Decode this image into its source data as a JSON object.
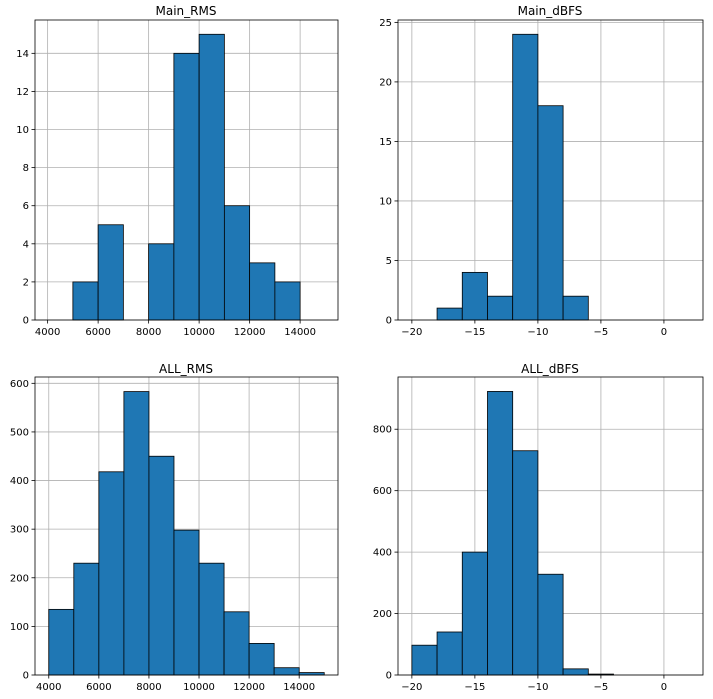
{
  "colors": {
    "bar": "#1f77b4",
    "edge": "#000000",
    "grid": "#b0b0b0"
  },
  "chart_data": [
    {
      "type": "bar",
      "title": "Main_RMS",
      "xlim": [
        3500,
        15500
      ],
      "ylim": [
        0,
        15.75
      ],
      "xticks": [
        4000,
        6000,
        8000,
        10000,
        12000,
        14000
      ],
      "xtick_labels": [
        "4000",
        "6000",
        "8000",
        "10000",
        "12000",
        "14000"
      ],
      "yticks": [
        0,
        2,
        4,
        6,
        8,
        10,
        12,
        14
      ],
      "ytick_labels": [
        "0",
        "2",
        "4",
        "6",
        "8",
        "10",
        "12",
        "14"
      ],
      "bins": [
        {
          "x0": 4000,
          "x1": 5000,
          "count": 0
        },
        {
          "x0": 5000,
          "x1": 6000,
          "count": 2
        },
        {
          "x0": 6000,
          "x1": 7000,
          "count": 5
        },
        {
          "x0": 7000,
          "x1": 8000,
          "count": 0
        },
        {
          "x0": 8000,
          "x1": 9000,
          "count": 4
        },
        {
          "x0": 9000,
          "x1": 10000,
          "count": 14
        },
        {
          "x0": 10000,
          "x1": 11000,
          "count": 15
        },
        {
          "x0": 11000,
          "x1": 12000,
          "count": 6
        },
        {
          "x0": 12000,
          "x1": 13000,
          "count": 3
        },
        {
          "x0": 13000,
          "x1": 14000,
          "count": 2
        },
        {
          "x0": 14000,
          "x1": 15000,
          "count": 0
        }
      ],
      "grid": true
    },
    {
      "type": "bar",
      "title": "Main_dBFS",
      "xlim": [
        -21.1,
        3.1
      ],
      "ylim": [
        0,
        25.2
      ],
      "xticks": [
        -20,
        -15,
        -10,
        -5,
        0
      ],
      "xtick_labels": [
        "−20",
        "−15",
        "−10",
        "−5",
        "0"
      ],
      "yticks": [
        0,
        5,
        10,
        15,
        20,
        25
      ],
      "ytick_labels": [
        "0",
        "5",
        "10",
        "15",
        "20",
        "25"
      ],
      "bins": [
        {
          "x0": -20,
          "x1": -18,
          "count": 0
        },
        {
          "x0": -18,
          "x1": -16,
          "count": 1
        },
        {
          "x0": -16,
          "x1": -14,
          "count": 4
        },
        {
          "x0": -14,
          "x1": -12,
          "count": 2
        },
        {
          "x0": -12,
          "x1": -10,
          "count": 24
        },
        {
          "x0": -10,
          "x1": -8,
          "count": 18
        },
        {
          "x0": -8,
          "x1": -6,
          "count": 2
        },
        {
          "x0": -6,
          "x1": -4,
          "count": 0
        },
        {
          "x0": -4,
          "x1": -2,
          "count": 0
        },
        {
          "x0": -2,
          "x1": 0,
          "count": 0
        },
        {
          "x0": 0,
          "x1": 2,
          "count": 0
        }
      ],
      "grid": true
    },
    {
      "type": "bar",
      "title": "ALL_RMS",
      "xlim": [
        3450,
        15550
      ],
      "ylim": [
        0,
        613
      ],
      "xticks": [
        4000,
        6000,
        8000,
        10000,
        12000,
        14000
      ],
      "xtick_labels": [
        "4000",
        "6000",
        "8000",
        "10000",
        "12000",
        "14000"
      ],
      "yticks": [
        0,
        100,
        200,
        300,
        400,
        500,
        600
      ],
      "ytick_labels": [
        "0",
        "100",
        "200",
        "300",
        "400",
        "500",
        "600"
      ],
      "bins": [
        {
          "x0": 4000,
          "x1": 5000,
          "count": 135
        },
        {
          "x0": 5000,
          "x1": 6000,
          "count": 230
        },
        {
          "x0": 6000,
          "x1": 7000,
          "count": 418
        },
        {
          "x0": 7000,
          "x1": 8000,
          "count": 583
        },
        {
          "x0": 8000,
          "x1": 9000,
          "count": 450
        },
        {
          "x0": 9000,
          "x1": 10000,
          "count": 298
        },
        {
          "x0": 10000,
          "x1": 11000,
          "count": 230
        },
        {
          "x0": 11000,
          "x1": 12000,
          "count": 130
        },
        {
          "x0": 12000,
          "x1": 13000,
          "count": 65
        },
        {
          "x0": 13000,
          "x1": 14000,
          "count": 15
        },
        {
          "x0": 14000,
          "x1": 15000,
          "count": 5
        }
      ],
      "grid": true
    },
    {
      "type": "bar",
      "title": "ALL_dBFS",
      "xlim": [
        -21.1,
        3.1
      ],
      "ylim": [
        0,
        970
      ],
      "xticks": [
        -20,
        -15,
        -10,
        -5,
        0
      ],
      "xtick_labels": [
        "−20",
        "−15",
        "−10",
        "−5",
        "0"
      ],
      "yticks": [
        0,
        200,
        400,
        600,
        800
      ],
      "ytick_labels": [
        "0",
        "200",
        "400",
        "600",
        "800"
      ],
      "bins": [
        {
          "x0": -20,
          "x1": -18,
          "count": 97
        },
        {
          "x0": -18,
          "x1": -16,
          "count": 140
        },
        {
          "x0": -16,
          "x1": -14,
          "count": 400
        },
        {
          "x0": -14,
          "x1": -12,
          "count": 923
        },
        {
          "x0": -12,
          "x1": -10,
          "count": 730
        },
        {
          "x0": -10,
          "x1": -8,
          "count": 328
        },
        {
          "x0": -8,
          "x1": -6,
          "count": 20
        },
        {
          "x0": -6,
          "x1": -4,
          "count": 3
        },
        {
          "x0": -4,
          "x1": -2,
          "count": 0
        },
        {
          "x0": -2,
          "x1": 0,
          "count": 0
        },
        {
          "x0": 0,
          "x1": 2,
          "count": 0
        }
      ],
      "grid": true
    }
  ]
}
